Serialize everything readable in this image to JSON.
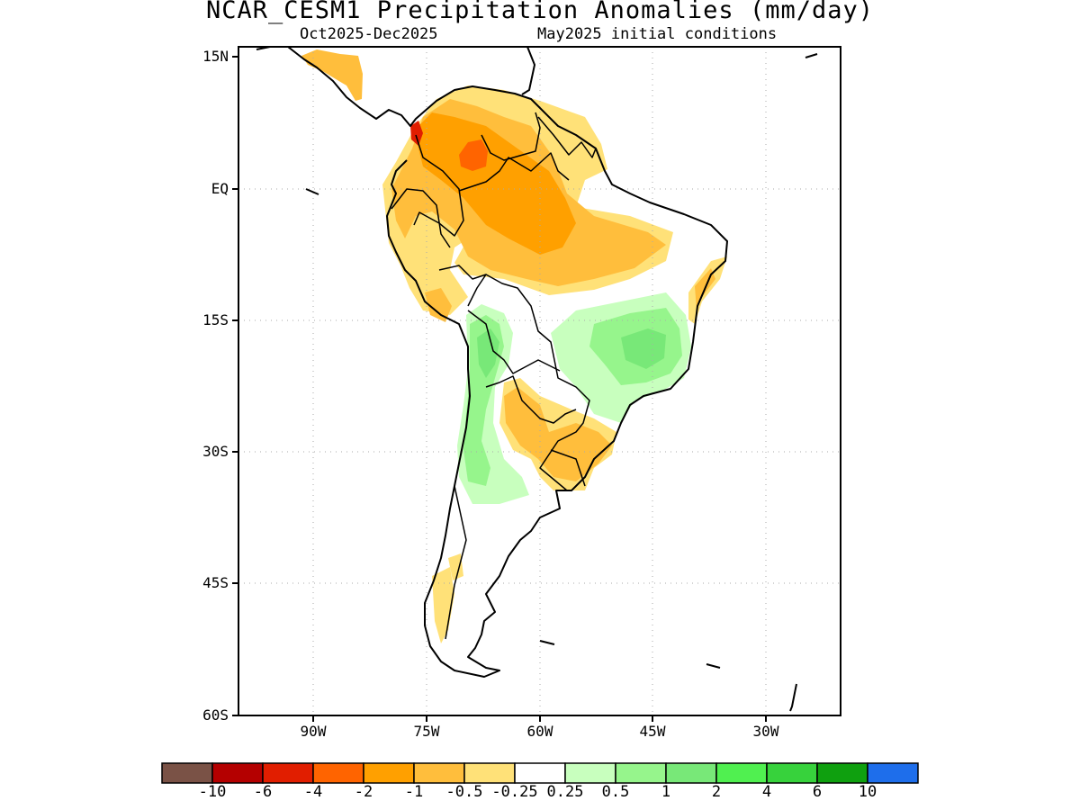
{
  "title": "NCAR_CESM1 Precipitation Anomalies (mm/day)",
  "subtitle_left": "Oct2025-Dec2025",
  "subtitle_right": "May2025 initial conditions",
  "lat_ticks": [
    "15N",
    "EQ",
    "15S",
    "30S",
    "45S",
    "60S"
  ],
  "lon_ticks": [
    "90W",
    "75W",
    "60W",
    "45W",
    "30W"
  ],
  "colorbar": {
    "labels": [
      "-10",
      "-6",
      "-4",
      "-2",
      "-1",
      "-0.5",
      "-0.25",
      "0.25",
      "0.5",
      "1",
      "2",
      "4",
      "6",
      "10"
    ],
    "colors": [
      "#7a5246",
      "#b40000",
      "#e11e00",
      "#ff6400",
      "#ffa000",
      "#ffbe3c",
      "#ffe178",
      "#ffffff",
      "#c8ffbe",
      "#96f58c",
      "#78e878",
      "#50f050",
      "#37d23c",
      "#0fa00f",
      "#1e6eeb"
    ]
  },
  "anomaly_colors": {
    "dry_light": "#ffe178",
    "dry_medium": "#ffbe3c",
    "dry_strong": "#ffa000",
    "dry_very_strong": "#ff6400",
    "dry_extreme": "#e11e00",
    "wet_light": "#c8ffbe",
    "wet_medium": "#96f58c",
    "wet_strong": "#78e878",
    "wet_very_strong": "#50f050"
  }
}
